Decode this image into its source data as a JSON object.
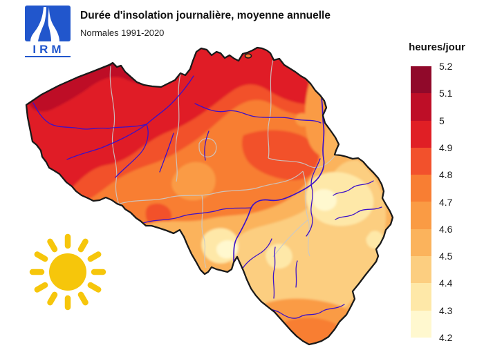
{
  "header": {
    "title": "Durée d'insolation journalière, moyenne annuelle",
    "subtitle": "Normales 1991-2020",
    "logo_text": "IRM",
    "logo_color": "#2156CC"
  },
  "legend": {
    "title": "heures/jour",
    "tick_labels": [
      "5.2",
      "5.1",
      "5",
      "4.9",
      "4.8",
      "4.7",
      "4.6",
      "4.5",
      "4.4",
      "4.3",
      "4.2"
    ],
    "bands": [
      {
        "range": "5.1-5.2",
        "color": "#90092A"
      },
      {
        "range": "5.0-5.1",
        "color": "#BE0E27"
      },
      {
        "range": "4.9-5.0",
        "color": "#E01F25"
      },
      {
        "range": "4.8-4.9",
        "color": "#F2512C"
      },
      {
        "range": "4.7-4.8",
        "color": "#F87E33"
      },
      {
        "range": "4.6-4.7",
        "color": "#FA9B44"
      },
      {
        "range": "4.5-4.6",
        "color": "#FBB35C"
      },
      {
        "range": "4.4-4.5",
        "color": "#FCCE80"
      },
      {
        "range": "4.3-4.4",
        "color": "#FEE8A8"
      },
      {
        "range": "4.2-4.3",
        "color": "#FFF8CF"
      }
    ]
  },
  "map": {
    "outline_color": "#1A1A1A",
    "province_border_color": "#C9C9C9",
    "river_color": "#3C10C8",
    "sun_color": "#F6C60B"
  }
}
